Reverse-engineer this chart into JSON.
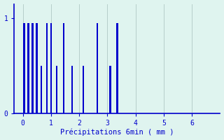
{
  "title": "",
  "xlabel": "Précipitations 6min ( mm )",
  "ylabel": "",
  "background_color": "#dff4ef",
  "bar_color": "#0000cc",
  "bar_edge_color": "#0000cc",
  "grid_color": "#b0c8c4",
  "axis_color": "#0000cc",
  "tick_color": "#0000cc",
  "label_color": "#0000cc",
  "xlim": [
    -0.3,
    7.0
  ],
  "ylim": [
    0,
    1.15
  ],
  "yticks": [
    0,
    1
  ],
  "xticks": [
    0,
    1,
    2,
    3,
    4,
    5,
    6
  ],
  "bar_positions": [
    0.05,
    0.2,
    0.35,
    0.5,
    0.65,
    0.85,
    1.0,
    1.2,
    1.45,
    1.75,
    2.15,
    2.65,
    3.1,
    3.35
  ],
  "bar_heights": [
    0.95,
    0.95,
    0.95,
    0.95,
    0.5,
    0.95,
    0.95,
    0.5,
    0.95,
    0.5,
    0.5,
    0.95,
    0.5,
    0.95
  ],
  "bar_width": 0.06,
  "figsize": [
    3.2,
    2.0
  ],
  "dpi": 100
}
